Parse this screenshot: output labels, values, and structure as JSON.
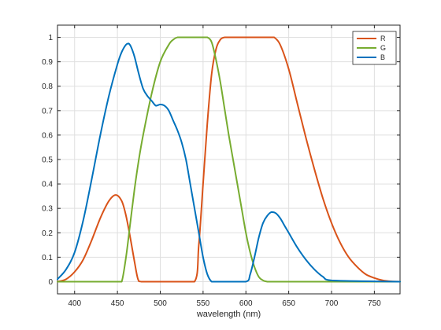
{
  "chart_data": {
    "type": "line",
    "title": "",
    "xlabel": "wavelength (nm)",
    "ylabel": "",
    "xlim": [
      380,
      780
    ],
    "ylim": [
      -0.05,
      1.05
    ],
    "xticks": [
      400,
      450,
      500,
      550,
      600,
      650,
      700,
      750
    ],
    "yticks": [
      0,
      0.1,
      0.2,
      0.3,
      0.4,
      0.5,
      0.6,
      0.7,
      0.8,
      0.9,
      1
    ],
    "grid": true,
    "legend_position": "top-right",
    "series": [
      {
        "name": "R",
        "color": "#D95319",
        "x": [
          380,
          390,
          400,
          410,
          420,
          430,
          440,
          448,
          455,
          460,
          465,
          470,
          474,
          478,
          540,
          545,
          550,
          555,
          560,
          565,
          570,
          575,
          580,
          590,
          600,
          610,
          620,
          630,
          633,
          640,
          650,
          660,
          670,
          680,
          690,
          700,
          710,
          720,
          730,
          740,
          750,
          760,
          770,
          780
        ],
        "y": [
          0.0,
          0.01,
          0.04,
          0.09,
          0.17,
          0.26,
          0.33,
          0.355,
          0.33,
          0.27,
          0.18,
          0.08,
          0.01,
          0.0,
          0.0,
          0.15,
          0.4,
          0.65,
          0.85,
          0.95,
          0.99,
          1.0,
          1.0,
          1.0,
          1.0,
          1.0,
          1.0,
          1.0,
          1.0,
          0.97,
          0.87,
          0.73,
          0.59,
          0.46,
          0.34,
          0.24,
          0.16,
          0.1,
          0.06,
          0.03,
          0.015,
          0.005,
          0.001,
          0.0
        ]
      },
      {
        "name": "G",
        "color": "#77AC30",
        "x": [
          380,
          450,
          455,
          460,
          465,
          470,
          475,
          480,
          490,
          500,
          510,
          515,
          520,
          530,
          540,
          550,
          555,
          560,
          565,
          570,
          575,
          580,
          585,
          590,
          595,
          600,
          605,
          610,
          615,
          620,
          625,
          630,
          780
        ],
        "y": [
          0.0,
          0.0,
          0.0,
          0.1,
          0.24,
          0.38,
          0.5,
          0.6,
          0.77,
          0.9,
          0.97,
          0.99,
          1.0,
          1.0,
          1.0,
          1.0,
          1.0,
          0.98,
          0.91,
          0.82,
          0.71,
          0.6,
          0.5,
          0.4,
          0.3,
          0.2,
          0.12,
          0.06,
          0.02,
          0.005,
          0.0,
          0.0,
          0.0
        ]
      },
      {
        "name": "B",
        "color": "#0072BD",
        "x": [
          380,
          390,
          400,
          410,
          420,
          430,
          440,
          450,
          455,
          460,
          463,
          466,
          470,
          475,
          480,
          485,
          490,
          495,
          500,
          505,
          510,
          515,
          520,
          525,
          530,
          535,
          540,
          545,
          550,
          555,
          560,
          565,
          600,
          605,
          610,
          615,
          620,
          625,
          630,
          635,
          640,
          645,
          650,
          660,
          670,
          680,
          690,
          700,
          780
        ],
        "y": [
          0.01,
          0.05,
          0.12,
          0.25,
          0.42,
          0.6,
          0.76,
          0.89,
          0.94,
          0.97,
          0.975,
          0.96,
          0.92,
          0.85,
          0.79,
          0.76,
          0.74,
          0.72,
          0.725,
          0.72,
          0.7,
          0.66,
          0.62,
          0.57,
          0.5,
          0.4,
          0.3,
          0.2,
          0.1,
          0.03,
          0.0,
          0.0,
          0.0,
          0.03,
          0.1,
          0.18,
          0.24,
          0.27,
          0.285,
          0.28,
          0.26,
          0.23,
          0.2,
          0.14,
          0.09,
          0.05,
          0.02,
          0.005,
          0.0
        ]
      }
    ]
  }
}
